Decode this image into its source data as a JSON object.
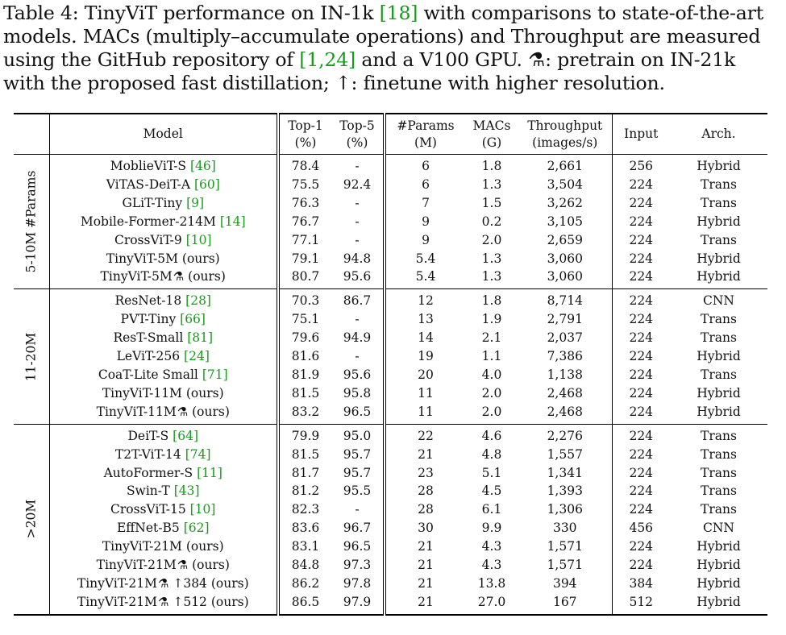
{
  "caption": {
    "p1": "Table 4: TinyViT performance on IN-1k ",
    "r1": "[18]",
    "p2": " with comparisons to state-of-the-art models. MACs (multiply–accumulate operations) and Throughput are measured using the GitHub repository of ",
    "r2": "[1,24]",
    "p3": " and a V100 GPU. ",
    "sym1": "⚗",
    "p4": ": pretrain on IN-21k with the proposed fast distillation; ",
    "sym2": "↑",
    "p5": ": finetune with higher resolution."
  },
  "headers": {
    "model": "Model",
    "top1_a": "Top-1",
    "top1_b": "(%)",
    "top5_a": "Top-5",
    "top5_b": "(%)",
    "params_a": "#Params",
    "params_b": "(M)",
    "macs_a": "MACs",
    "macs_b": "(G)",
    "tp_a": "Throughput",
    "tp_b": "(images/s)",
    "input": "Input",
    "arch": "Arch."
  },
  "groups": [
    {
      "label": "5-10M #Params",
      "rows": [
        {
          "name": "MoblieViT-S ",
          "ref": "[46]",
          "top1": "78.4",
          "top5": "-",
          "params": "6",
          "macs": "1.8",
          "tp": "2,661",
          "input": "256",
          "arch": "Hybrid"
        },
        {
          "name": "ViTAS-DeiT-A ",
          "ref": "[60]",
          "top1": "75.5",
          "top5": "92.4",
          "params": "6",
          "macs": "1.3",
          "tp": "3,504",
          "input": "224",
          "arch": "Trans"
        },
        {
          "name": "GLiT-Tiny ",
          "ref": "[9]",
          "top1": "76.3",
          "top5": "-",
          "params": "7",
          "macs": "1.5",
          "tp": "3,262",
          "input": "224",
          "arch": "Trans"
        },
        {
          "name": "Mobile-Former-214M ",
          "ref": "[14]",
          "top1": "76.7",
          "top5": "-",
          "params": "9",
          "macs": "0.2",
          "tp": "3,105",
          "input": "224",
          "arch": "Hybrid"
        },
        {
          "name": "CrossViT-9 ",
          "ref": "[10]",
          "top1": "77.1",
          "top5": "-",
          "params": "9",
          "macs": "2.0",
          "tp": "2,659",
          "input": "224",
          "arch": "Trans"
        },
        {
          "name": "TinyViT-5M (ours)",
          "ref": "",
          "bold": true,
          "top1": "79.1",
          "top5": "94.8",
          "params": "5.4",
          "macs": "1.3",
          "tp": "3,060",
          "input": "224",
          "arch": "Hybrid"
        },
        {
          "name": "TinyViT-5M",
          "ref": "",
          "bold": true,
          "sym": "⚗",
          "suffix": " (ours)",
          "top1": "80.7",
          "top5": "95.6",
          "params": "5.4",
          "macs": "1.3",
          "tp": "3,060",
          "input": "224",
          "arch": "Hybrid"
        }
      ]
    },
    {
      "label": "11-20M",
      "rows": [
        {
          "name": "ResNet-18 ",
          "ref": "[28]",
          "top1": "70.3",
          "top5": "86.7",
          "params": "12",
          "macs": "1.8",
          "tp": "8,714",
          "input": "224",
          "arch": "CNN"
        },
        {
          "name": "PVT-Tiny ",
          "ref": "[66]",
          "top1": "75.1",
          "top5": "-",
          "params": "13",
          "macs": "1.9",
          "tp": "2,791",
          "input": "224",
          "arch": "Trans"
        },
        {
          "name": "ResT-Small ",
          "ref": "[81]",
          "top1": "79.6",
          "top5": "94.9",
          "params": "14",
          "macs": "2.1",
          "tp": "2,037",
          "input": "224",
          "arch": "Trans"
        },
        {
          "name": "LeViT-256 ",
          "ref": "[24]",
          "top1": "81.6",
          "top5": "-",
          "params": "19",
          "macs": "1.1",
          "tp": "7,386",
          "input": "224",
          "arch": "Hybrid"
        },
        {
          "name": "CoaT-Lite Small ",
          "ref": "[71]",
          "top1": "81.9",
          "top5": "95.6",
          "params": "20",
          "macs": "4.0",
          "tp": "1,138",
          "input": "224",
          "arch": "Trans"
        },
        {
          "name": "TinyViT-11M (ours)",
          "ref": "",
          "bold": true,
          "top1": "81.5",
          "top5": "95.8",
          "params": "11",
          "macs": "2.0",
          "tp": "2,468",
          "input": "224",
          "arch": "Hybrid"
        },
        {
          "name": "TinyViT-11M",
          "ref": "",
          "bold": true,
          "sym": "⚗",
          "suffix": " (ours)",
          "top1": "83.2",
          "top5": "96.5",
          "params": "11",
          "macs": "2.0",
          "tp": "2,468",
          "input": "224",
          "arch": "Hybrid"
        }
      ]
    },
    {
      "label": ">20M",
      "rows": [
        {
          "name": "DeiT-S ",
          "ref": "[64]",
          "top1": "79.9",
          "top5": "95.0",
          "params": "22",
          "macs": "4.6",
          "tp": "2,276",
          "input": "224",
          "arch": "Trans"
        },
        {
          "name": "T2T-ViT-14 ",
          "ref": "[74]",
          "top1": "81.5",
          "top5": "95.7",
          "params": "21",
          "macs": "4.8",
          "tp": "1,557",
          "input": "224",
          "arch": "Trans"
        },
        {
          "name": "AutoFormer-S ",
          "ref": "[11]",
          "top1": "81.7",
          "top5": "95.7",
          "params": "23",
          "macs": "5.1",
          "tp": "1,341",
          "input": "224",
          "arch": "Trans"
        },
        {
          "name": "Swin-T ",
          "ref": "[43]",
          "top1": "81.2",
          "top5": "95.5",
          "params": "28",
          "macs": "4.5",
          "tp": "1,393",
          "input": "224",
          "arch": "Trans"
        },
        {
          "name": "CrossViT-15 ",
          "ref": "[10]",
          "top1": "82.3",
          "top5": "-",
          "params": "28",
          "macs": "6.1",
          "tp": "1,306",
          "input": "224",
          "arch": "Trans"
        },
        {
          "name": "EffNet-B5 ",
          "ref": "[62]",
          "top1": "83.6",
          "top5": "96.7",
          "params": "30",
          "macs": "9.9",
          "tp": "330",
          "input": "456",
          "arch": "CNN"
        },
        {
          "name": "TinyViT-21M (ours)",
          "ref": "",
          "bold": true,
          "top1": "83.1",
          "top5": "96.5",
          "params": "21",
          "macs": "4.3",
          "tp": "1,571",
          "input": "224",
          "arch": "Hybrid"
        },
        {
          "name": "TinyViT-21M",
          "ref": "",
          "bold": true,
          "sym": "⚗",
          "suffix": " (ours)",
          "top1": "84.8",
          "top5": "97.3",
          "params": "21",
          "macs": "4.3",
          "tp": "1,571",
          "input": "224",
          "arch": "Hybrid"
        },
        {
          "name": "TinyViT-21M",
          "ref": "",
          "bold": true,
          "sym": "⚗",
          "suffix": " ↑384 (ours)",
          "top1": "86.2",
          "top5": "97.8",
          "params": "21",
          "macs": "13.8",
          "tp": "394",
          "input": "384",
          "arch": "Hybrid"
        },
        {
          "name": "TinyViT-21M",
          "ref": "",
          "bold": true,
          "sym": "⚗",
          "suffix": " ↑512 (ours)",
          "top1": "86.5",
          "top5": "97.9",
          "params": "21",
          "macs": "27.0",
          "tp": "167",
          "input": "512",
          "arch": "Hybrid"
        }
      ]
    }
  ]
}
